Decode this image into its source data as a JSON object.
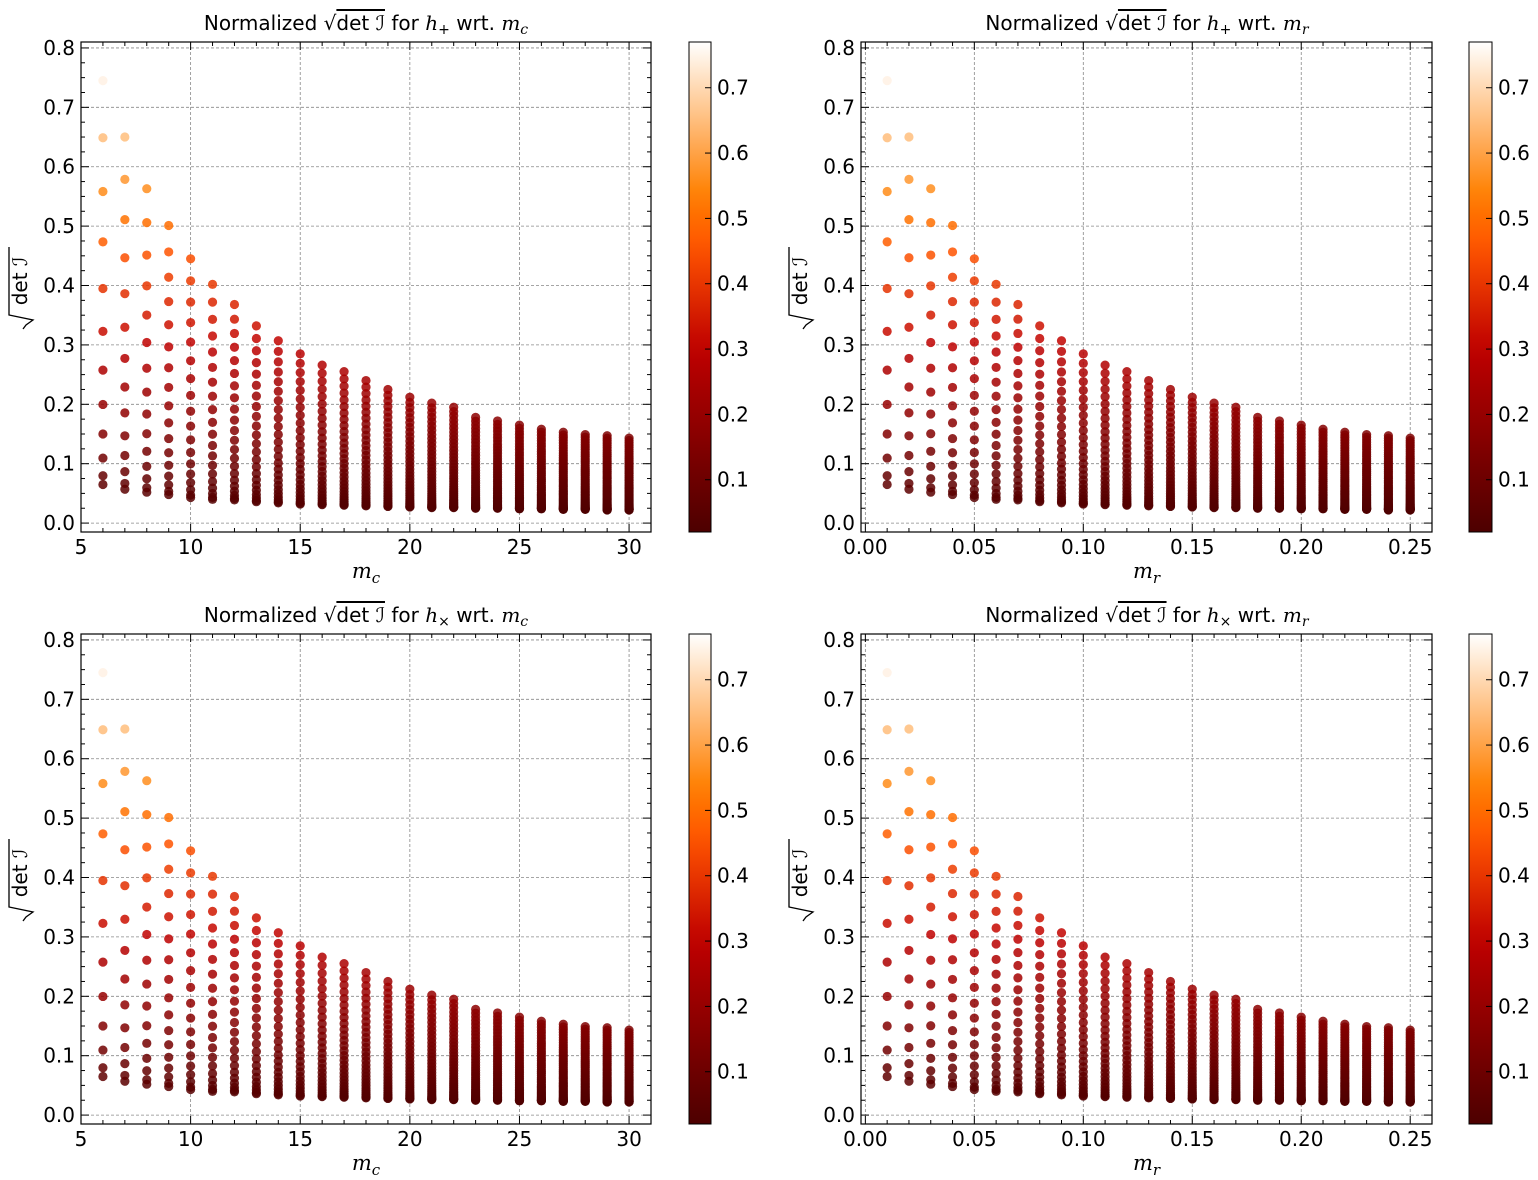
{
  "chart_data": [
    {
      "type": "scatter",
      "title": {
        "prefix": "Normalized",
        "expr": "det ℐ",
        "for": "for",
        "h_sub": "+",
        "wrt": "wrt.",
        "var": "m",
        "var_sub": "c"
      },
      "xlabel": {
        "var": "m",
        "sub": "c"
      },
      "ylabel": "det ℐ",
      "xlim": [
        5,
        31
      ],
      "ylim": [
        -0.015,
        0.81
      ],
      "xticks": [
        "5",
        "10",
        "15",
        "20",
        "25",
        "30"
      ],
      "xtick_values": [
        5,
        10,
        15,
        20,
        25,
        30
      ],
      "yticks": [
        "0.0",
        "0.1",
        "0.2",
        "0.3",
        "0.4",
        "0.5",
        "0.6",
        "0.7",
        "0.8"
      ],
      "colorbar": {
        "ticks": [
          "0.1",
          "0.2",
          "0.3",
          "0.4",
          "0.5",
          "0.6",
          "0.7"
        ],
        "range": [
          0.02,
          0.77
        ],
        "cmap": "gist_heat"
      },
      "grid": true,
      "x_values": [
        6,
        7,
        8,
        9,
        10,
        11,
        12,
        13,
        14,
        15,
        16,
        17,
        18,
        19,
        20,
        21,
        22,
        23,
        24,
        25,
        26,
        27,
        28,
        29,
        30
      ],
      "y_max": [
        0.745,
        0.65,
        0.563,
        0.501,
        0.445,
        0.402,
        0.368,
        0.332,
        0.307,
        0.285,
        0.266,
        0.255,
        0.24,
        0.225,
        0.212,
        0.202,
        0.195,
        0.178,
        0.172,
        0.165,
        0.158,
        0.153,
        0.149,
        0.147,
        0.143
      ],
      "y_min": [
        0.065,
        0.057,
        0.052,
        0.048,
        0.043,
        0.04,
        0.039,
        0.036,
        0.034,
        0.032,
        0.031,
        0.03,
        0.029,
        0.028,
        0.027,
        0.026,
        0.026,
        0.025,
        0.025,
        0.024,
        0.024,
        0.023,
        0.023,
        0.022,
        0.022
      ]
    },
    {
      "type": "scatter",
      "title": {
        "prefix": "Normalized",
        "expr": "det ℐ",
        "for": "for",
        "h_sub": "+",
        "wrt": "wrt.",
        "var": "m",
        "var_sub": "r"
      },
      "xlabel": {
        "var": "m",
        "sub": "r"
      },
      "ylabel": "det ℐ",
      "xlim": [
        -0.002,
        0.26
      ],
      "ylim": [
        -0.015,
        0.81
      ],
      "xticks": [
        "0.00",
        "0.05",
        "0.10",
        "0.15",
        "0.20",
        "0.25"
      ],
      "xtick_values": [
        0,
        0.05,
        0.1,
        0.15,
        0.2,
        0.25
      ],
      "yticks": [
        "0.0",
        "0.1",
        "0.2",
        "0.3",
        "0.4",
        "0.5",
        "0.6",
        "0.7",
        "0.8"
      ],
      "colorbar": {
        "ticks": [
          "0.1",
          "0.2",
          "0.3",
          "0.4",
          "0.5",
          "0.6",
          "0.7"
        ],
        "range": [
          0.02,
          0.77
        ],
        "cmap": "gist_heat"
      },
      "grid": true,
      "x_values": [
        0.01,
        0.02,
        0.03,
        0.04,
        0.05,
        0.06,
        0.07,
        0.08,
        0.09,
        0.1,
        0.11,
        0.12,
        0.13,
        0.14,
        0.15,
        0.16,
        0.17,
        0.18,
        0.19,
        0.2,
        0.21,
        0.22,
        0.23,
        0.24,
        0.25
      ],
      "y_max": [
        0.745,
        0.65,
        0.563,
        0.501,
        0.445,
        0.402,
        0.368,
        0.332,
        0.307,
        0.285,
        0.266,
        0.255,
        0.24,
        0.225,
        0.212,
        0.202,
        0.195,
        0.178,
        0.172,
        0.165,
        0.158,
        0.153,
        0.149,
        0.147,
        0.143
      ],
      "y_min": [
        0.065,
        0.057,
        0.052,
        0.048,
        0.043,
        0.04,
        0.039,
        0.036,
        0.034,
        0.032,
        0.031,
        0.03,
        0.029,
        0.028,
        0.027,
        0.026,
        0.026,
        0.025,
        0.025,
        0.024,
        0.024,
        0.023,
        0.023,
        0.022,
        0.022
      ]
    },
    {
      "type": "scatter",
      "title": {
        "prefix": "Normalized",
        "expr": "det ℐ",
        "for": "for",
        "h_sub": "×",
        "wrt": "wrt.",
        "var": "m",
        "var_sub": "c"
      },
      "xlabel": {
        "var": "m",
        "sub": "c"
      },
      "ylabel": "det ℐ",
      "xlim": [
        5,
        31
      ],
      "ylim": [
        -0.015,
        0.81
      ],
      "xticks": [
        "5",
        "10",
        "15",
        "20",
        "25",
        "30"
      ],
      "xtick_values": [
        5,
        10,
        15,
        20,
        25,
        30
      ],
      "yticks": [
        "0.0",
        "0.1",
        "0.2",
        "0.3",
        "0.4",
        "0.5",
        "0.6",
        "0.7",
        "0.8"
      ],
      "colorbar": {
        "ticks": [
          "0.1",
          "0.2",
          "0.3",
          "0.4",
          "0.5",
          "0.6",
          "0.7"
        ],
        "range": [
          0.02,
          0.77
        ],
        "cmap": "gist_heat"
      },
      "grid": true,
      "x_values": [
        6,
        7,
        8,
        9,
        10,
        11,
        12,
        13,
        14,
        15,
        16,
        17,
        18,
        19,
        20,
        21,
        22,
        23,
        24,
        25,
        26,
        27,
        28,
        29,
        30
      ],
      "y_max": [
        0.745,
        0.65,
        0.563,
        0.501,
        0.445,
        0.402,
        0.368,
        0.332,
        0.307,
        0.285,
        0.266,
        0.255,
        0.24,
        0.225,
        0.212,
        0.202,
        0.195,
        0.178,
        0.172,
        0.165,
        0.158,
        0.153,
        0.149,
        0.147,
        0.143
      ],
      "y_min": [
        0.065,
        0.057,
        0.052,
        0.048,
        0.043,
        0.04,
        0.039,
        0.036,
        0.034,
        0.032,
        0.031,
        0.03,
        0.029,
        0.028,
        0.027,
        0.026,
        0.026,
        0.025,
        0.025,
        0.024,
        0.024,
        0.023,
        0.023,
        0.022,
        0.022
      ]
    },
    {
      "type": "scatter",
      "title": {
        "prefix": "Normalized",
        "expr": "det ℐ",
        "for": "for",
        "h_sub": "×",
        "wrt": "wrt.",
        "var": "m",
        "var_sub": "r"
      },
      "xlabel": {
        "var": "m",
        "sub": "r"
      },
      "ylabel": "det ℐ",
      "xlim": [
        -0.002,
        0.26
      ],
      "ylim": [
        -0.015,
        0.81
      ],
      "xticks": [
        "0.00",
        "0.05",
        "0.10",
        "0.15",
        "0.20",
        "0.25"
      ],
      "xtick_values": [
        0,
        0.05,
        0.1,
        0.15,
        0.2,
        0.25
      ],
      "yticks": [
        "0.0",
        "0.1",
        "0.2",
        "0.3",
        "0.4",
        "0.5",
        "0.6",
        "0.7",
        "0.8"
      ],
      "colorbar": {
        "ticks": [
          "0.1",
          "0.2",
          "0.3",
          "0.4",
          "0.5",
          "0.6",
          "0.7"
        ],
        "range": [
          0.02,
          0.77
        ],
        "cmap": "gist_heat"
      },
      "grid": true,
      "x_values": [
        0.01,
        0.02,
        0.03,
        0.04,
        0.05,
        0.06,
        0.07,
        0.08,
        0.09,
        0.1,
        0.11,
        0.12,
        0.13,
        0.14,
        0.15,
        0.16,
        0.17,
        0.18,
        0.19,
        0.2,
        0.21,
        0.22,
        0.23,
        0.24,
        0.25
      ],
      "y_max": [
        0.745,
        0.65,
        0.563,
        0.501,
        0.445,
        0.402,
        0.368,
        0.332,
        0.307,
        0.285,
        0.266,
        0.255,
        0.24,
        0.225,
        0.212,
        0.202,
        0.195,
        0.178,
        0.172,
        0.165,
        0.158,
        0.153,
        0.149,
        0.147,
        0.143
      ],
      "y_min": [
        0.065,
        0.057,
        0.052,
        0.048,
        0.043,
        0.04,
        0.039,
        0.036,
        0.034,
        0.032,
        0.031,
        0.03,
        0.029,
        0.028,
        0.027,
        0.026,
        0.026,
        0.025,
        0.025,
        0.024,
        0.024,
        0.023,
        0.023,
        0.022,
        0.022
      ]
    }
  ]
}
